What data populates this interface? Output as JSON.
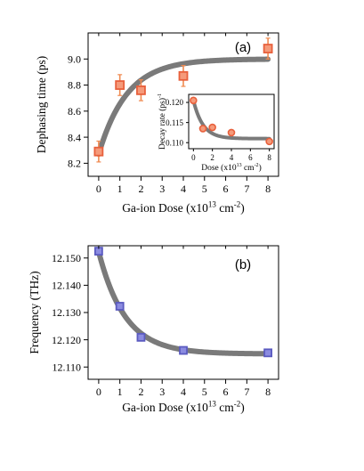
{
  "chart_data": [
    {
      "type": "scatter",
      "panel_label": "(a)",
      "xlabel": "Ga-ion Dose (x10^13 cm^-2)",
      "ylabel": "Dephasing time (ps)",
      "xlim": [
        -0.5,
        8.5
      ],
      "ylim": [
        8.1,
        9.2
      ],
      "x_ticks": [
        0,
        1,
        2,
        3,
        4,
        5,
        6,
        7,
        8
      ],
      "y_ticks": [
        8.2,
        8.4,
        8.6,
        8.8,
        9.0
      ],
      "y_tick_labels": [
        "8.2",
        "8.4",
        "8.6",
        "8.8",
        "9.0"
      ],
      "grid": false,
      "series": [
        {
          "x": [
            0,
            1,
            2,
            4,
            8
          ],
          "y": [
            8.29,
            8.8,
            8.76,
            8.87,
            9.08
          ],
          "yerr": [
            0.08,
            0.08,
            0.08,
            0.08,
            0.08
          ],
          "marker": "square",
          "color": "#e8603c"
        }
      ],
      "fit": {
        "model": "saturating-exponential",
        "y0": 8.27,
        "yinf": 9.0,
        "k": 0.75,
        "color": "#7a7a7a"
      },
      "inset": {
        "type": "scatter",
        "xlabel": "Dose (x10^13 cm^-2)",
        "ylabel": "Decay rate (ps)^-1",
        "xlim": [
          -0.5,
          8.5
        ],
        "ylim": [
          0.1085,
          0.122
        ],
        "x_ticks": [
          0,
          2,
          4,
          6,
          8
        ],
        "y_ticks": [
          0.11,
          0.115,
          0.12
        ],
        "y_tick_labels": [
          "0.110",
          "0.115",
          "0.120"
        ],
        "series": [
          {
            "x": [
              0,
              1,
              2,
              4,
              8
            ],
            "y": [
              0.1205,
              0.1135,
              0.1138,
              0.1125,
              0.1103
            ],
            "marker": "circle",
            "color": "#e8603c"
          }
        ],
        "fit": {
          "model": "decaying-exponential",
          "yinf": 0.111,
          "amp": 0.0095,
          "k": 1.0,
          "color": "#7a7a7a"
        }
      }
    },
    {
      "type": "scatter",
      "panel_label": "(b)",
      "xlabel": "Ga-ion Dose (x10^13 cm^-2)",
      "ylabel": "Frequency (THz)",
      "xlim": [
        -0.5,
        8.5
      ],
      "ylim": [
        12.1055,
        12.1545
      ],
      "x_ticks": [
        0,
        1,
        2,
        3,
        4,
        5,
        6,
        7,
        8
      ],
      "y_ticks": [
        12.11,
        12.12,
        12.13,
        12.14,
        12.15
      ],
      "y_tick_labels": [
        "12.110",
        "12.120",
        "12.130",
        "12.140",
        "12.150"
      ],
      "grid": false,
      "series": [
        {
          "x": [
            0,
            1,
            2,
            4,
            8
          ],
          "y": [
            12.1525,
            12.1323,
            12.1209,
            12.1161,
            12.1152
          ],
          "marker": "square",
          "color": "#5b5bc0"
        }
      ],
      "fit": {
        "model": "decaying-exponential",
        "yinf": 12.1148,
        "amp": 0.0375,
        "k": 0.8,
        "color": "#7a7a7a"
      }
    }
  ]
}
